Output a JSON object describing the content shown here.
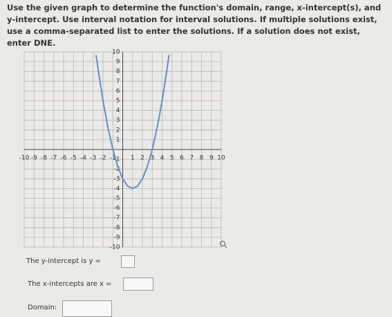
{
  "instructions": "Use the given graph to determine the function's domain, range, x-intercept(s), and y-intercept. Use interval notation for interval solutions. If multiple solutions exist, use a comma-separated list to enter the solutions. If a solution does not exist, enter DNE.",
  "graph": {
    "xlim": [
      -10,
      10
    ],
    "ylim": [
      -10,
      10
    ],
    "xticks": [
      -10,
      -9,
      -8,
      -7,
      -6,
      -5,
      -4,
      -3,
      -2,
      -1,
      1,
      2,
      3,
      4,
      5,
      6,
      7,
      8,
      9,
      10
    ],
    "yticks": [
      10,
      9,
      8,
      7,
      6,
      5,
      4,
      3,
      2,
      1,
      -1,
      -2,
      -3,
      -4,
      -5,
      -6,
      -7,
      -8,
      -9,
      -10
    ],
    "x": [
      -2.7,
      -2.5,
      -2,
      -1.5,
      -1,
      -0.5,
      0,
      0.5,
      1,
      1.5,
      2,
      2.5,
      3,
      3.5,
      4,
      4.5,
      4.7
    ],
    "y": [
      9.69,
      8.25,
      5,
      2.25,
      0,
      -1.75,
      -3,
      -3.75,
      -4,
      -3.75,
      -3,
      -1.75,
      0,
      2.25,
      5,
      8.25,
      9.69
    ],
    "color": "#5b8fd6"
  },
  "prompts": [
    "The y-intercept is y =",
    "The x-intercepts are x =",
    "Domain:"
  ]
}
